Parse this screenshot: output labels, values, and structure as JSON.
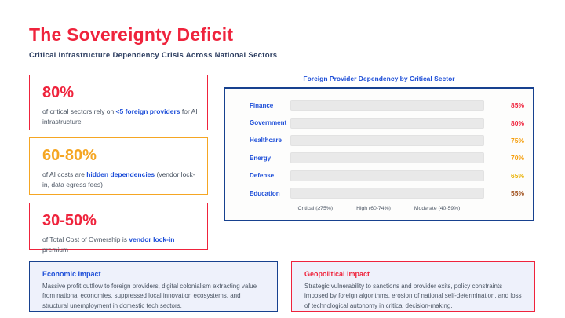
{
  "header": {
    "title": "The Sovereignty Deficit",
    "subtitle": "Critical Infrastructure Dependency Crisis Across National Sectors"
  },
  "colors": {
    "red": "#ef233c",
    "amber": "#f5a623",
    "blue": "#1d4ed8",
    "navy_border": "#17418f",
    "panel_bg": "#eef1fb",
    "track_gray": "#e9e9e9"
  },
  "stats": [
    {
      "value": "80%",
      "pre": "of critical sectors rely on ",
      "em": "<5 foreign providers",
      "post": " for AI infrastructure"
    },
    {
      "value": "60-80%",
      "pre": "of AI costs are ",
      "em": "hidden dependencies",
      "post": " (vendor lock-in, data egress fees)"
    },
    {
      "value": "30-50%",
      "pre": "of Total Cost of Ownership is ",
      "em": "vendor lock-in",
      "post": " premium"
    }
  ],
  "chart_data": {
    "type": "bar",
    "orientation": "horizontal",
    "title": "Foreign Provider Dependency by Critical Sector",
    "categories": [
      "Finance",
      "Government",
      "Healthcare",
      "Energy",
      "Defense",
      "Education"
    ],
    "values": [
      85,
      80,
      75,
      70,
      65,
      55
    ],
    "value_labels": [
      "85%",
      "80%",
      "75%",
      "70%",
      "65%",
      "55%"
    ],
    "value_colors": [
      "#ef233c",
      "#ef233c",
      "#f59e0b",
      "#f59e0b",
      "#eab308",
      "#a0521f"
    ],
    "xlim": [
      0,
      100
    ],
    "grid": false,
    "legend": [
      "Critical (≥75%)",
      "High (60-74%)",
      "Moderate (40-59%)"
    ],
    "legend_position": "bottom-inside",
    "bars_shown_as": "empty gray tracks, value labels at right"
  },
  "impacts": [
    {
      "title": "Economic Impact",
      "body": "Massive profit outflow to foreign providers, digital colonialism extracting value from national economies, suppressed local innovation ecosystems, and structural unemployment in domestic tech sectors."
    },
    {
      "title": "Geopolitical Impact",
      "body": "Strategic vulnerability to sanctions and provider exits, policy constraints imposed by foreign algorithms, erosion of national self-determination, and loss of technological autonomy in critical decision-making."
    }
  ]
}
